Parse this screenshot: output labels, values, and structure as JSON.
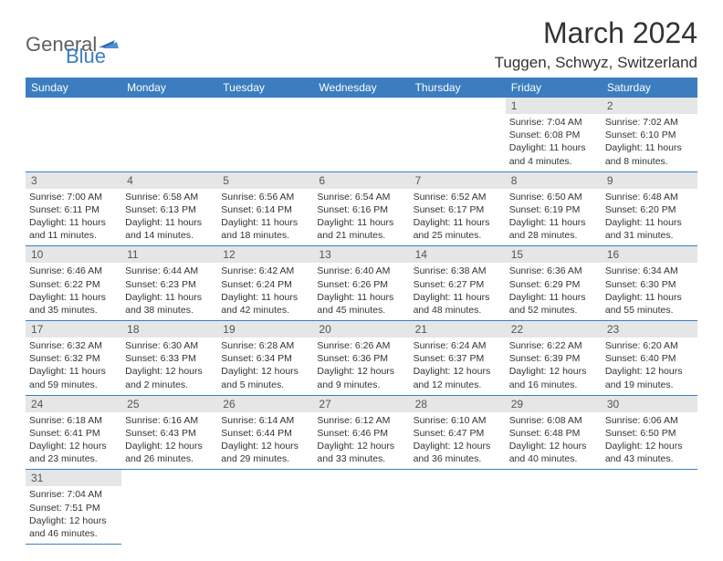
{
  "logo": {
    "text1": "General",
    "text2": "Blue"
  },
  "title": "March 2024",
  "location": "Tuggen, Schwyz, Switzerland",
  "colors": {
    "header_bg": "#3b7dbf",
    "header_text": "#ffffff",
    "daynum_bg": "#e6e6e6",
    "daynum_text": "#555555",
    "border": "#3b7dbf",
    "body_text": "#333333",
    "logo_gray": "#5f5f5f",
    "logo_blue": "#3b7dbf",
    "background": "#ffffff"
  },
  "weekdays": [
    "Sunday",
    "Monday",
    "Tuesday",
    "Wednesday",
    "Thursday",
    "Friday",
    "Saturday"
  ],
  "weeks": [
    [
      null,
      null,
      null,
      null,
      null,
      {
        "n": "1",
        "sr": "Sunrise: 7:04 AM",
        "ss": "Sunset: 6:08 PM",
        "dl": "Daylight: 11 hours and 4 minutes."
      },
      {
        "n": "2",
        "sr": "Sunrise: 7:02 AM",
        "ss": "Sunset: 6:10 PM",
        "dl": "Daylight: 11 hours and 8 minutes."
      }
    ],
    [
      {
        "n": "3",
        "sr": "Sunrise: 7:00 AM",
        "ss": "Sunset: 6:11 PM",
        "dl": "Daylight: 11 hours and 11 minutes."
      },
      {
        "n": "4",
        "sr": "Sunrise: 6:58 AM",
        "ss": "Sunset: 6:13 PM",
        "dl": "Daylight: 11 hours and 14 minutes."
      },
      {
        "n": "5",
        "sr": "Sunrise: 6:56 AM",
        "ss": "Sunset: 6:14 PM",
        "dl": "Daylight: 11 hours and 18 minutes."
      },
      {
        "n": "6",
        "sr": "Sunrise: 6:54 AM",
        "ss": "Sunset: 6:16 PM",
        "dl": "Daylight: 11 hours and 21 minutes."
      },
      {
        "n": "7",
        "sr": "Sunrise: 6:52 AM",
        "ss": "Sunset: 6:17 PM",
        "dl": "Daylight: 11 hours and 25 minutes."
      },
      {
        "n": "8",
        "sr": "Sunrise: 6:50 AM",
        "ss": "Sunset: 6:19 PM",
        "dl": "Daylight: 11 hours and 28 minutes."
      },
      {
        "n": "9",
        "sr": "Sunrise: 6:48 AM",
        "ss": "Sunset: 6:20 PM",
        "dl": "Daylight: 11 hours and 31 minutes."
      }
    ],
    [
      {
        "n": "10",
        "sr": "Sunrise: 6:46 AM",
        "ss": "Sunset: 6:22 PM",
        "dl": "Daylight: 11 hours and 35 minutes."
      },
      {
        "n": "11",
        "sr": "Sunrise: 6:44 AM",
        "ss": "Sunset: 6:23 PM",
        "dl": "Daylight: 11 hours and 38 minutes."
      },
      {
        "n": "12",
        "sr": "Sunrise: 6:42 AM",
        "ss": "Sunset: 6:24 PM",
        "dl": "Daylight: 11 hours and 42 minutes."
      },
      {
        "n": "13",
        "sr": "Sunrise: 6:40 AM",
        "ss": "Sunset: 6:26 PM",
        "dl": "Daylight: 11 hours and 45 minutes."
      },
      {
        "n": "14",
        "sr": "Sunrise: 6:38 AM",
        "ss": "Sunset: 6:27 PM",
        "dl": "Daylight: 11 hours and 48 minutes."
      },
      {
        "n": "15",
        "sr": "Sunrise: 6:36 AM",
        "ss": "Sunset: 6:29 PM",
        "dl": "Daylight: 11 hours and 52 minutes."
      },
      {
        "n": "16",
        "sr": "Sunrise: 6:34 AM",
        "ss": "Sunset: 6:30 PM",
        "dl": "Daylight: 11 hours and 55 minutes."
      }
    ],
    [
      {
        "n": "17",
        "sr": "Sunrise: 6:32 AM",
        "ss": "Sunset: 6:32 PM",
        "dl": "Daylight: 11 hours and 59 minutes."
      },
      {
        "n": "18",
        "sr": "Sunrise: 6:30 AM",
        "ss": "Sunset: 6:33 PM",
        "dl": "Daylight: 12 hours and 2 minutes."
      },
      {
        "n": "19",
        "sr": "Sunrise: 6:28 AM",
        "ss": "Sunset: 6:34 PM",
        "dl": "Daylight: 12 hours and 5 minutes."
      },
      {
        "n": "20",
        "sr": "Sunrise: 6:26 AM",
        "ss": "Sunset: 6:36 PM",
        "dl": "Daylight: 12 hours and 9 minutes."
      },
      {
        "n": "21",
        "sr": "Sunrise: 6:24 AM",
        "ss": "Sunset: 6:37 PM",
        "dl": "Daylight: 12 hours and 12 minutes."
      },
      {
        "n": "22",
        "sr": "Sunrise: 6:22 AM",
        "ss": "Sunset: 6:39 PM",
        "dl": "Daylight: 12 hours and 16 minutes."
      },
      {
        "n": "23",
        "sr": "Sunrise: 6:20 AM",
        "ss": "Sunset: 6:40 PM",
        "dl": "Daylight: 12 hours and 19 minutes."
      }
    ],
    [
      {
        "n": "24",
        "sr": "Sunrise: 6:18 AM",
        "ss": "Sunset: 6:41 PM",
        "dl": "Daylight: 12 hours and 23 minutes."
      },
      {
        "n": "25",
        "sr": "Sunrise: 6:16 AM",
        "ss": "Sunset: 6:43 PM",
        "dl": "Daylight: 12 hours and 26 minutes."
      },
      {
        "n": "26",
        "sr": "Sunrise: 6:14 AM",
        "ss": "Sunset: 6:44 PM",
        "dl": "Daylight: 12 hours and 29 minutes."
      },
      {
        "n": "27",
        "sr": "Sunrise: 6:12 AM",
        "ss": "Sunset: 6:46 PM",
        "dl": "Daylight: 12 hours and 33 minutes."
      },
      {
        "n": "28",
        "sr": "Sunrise: 6:10 AM",
        "ss": "Sunset: 6:47 PM",
        "dl": "Daylight: 12 hours and 36 minutes."
      },
      {
        "n": "29",
        "sr": "Sunrise: 6:08 AM",
        "ss": "Sunset: 6:48 PM",
        "dl": "Daylight: 12 hours and 40 minutes."
      },
      {
        "n": "30",
        "sr": "Sunrise: 6:06 AM",
        "ss": "Sunset: 6:50 PM",
        "dl": "Daylight: 12 hours and 43 minutes."
      }
    ],
    [
      {
        "n": "31",
        "sr": "Sunrise: 7:04 AM",
        "ss": "Sunset: 7:51 PM",
        "dl": "Daylight: 12 hours and 46 minutes."
      },
      null,
      null,
      null,
      null,
      null,
      null
    ]
  ]
}
